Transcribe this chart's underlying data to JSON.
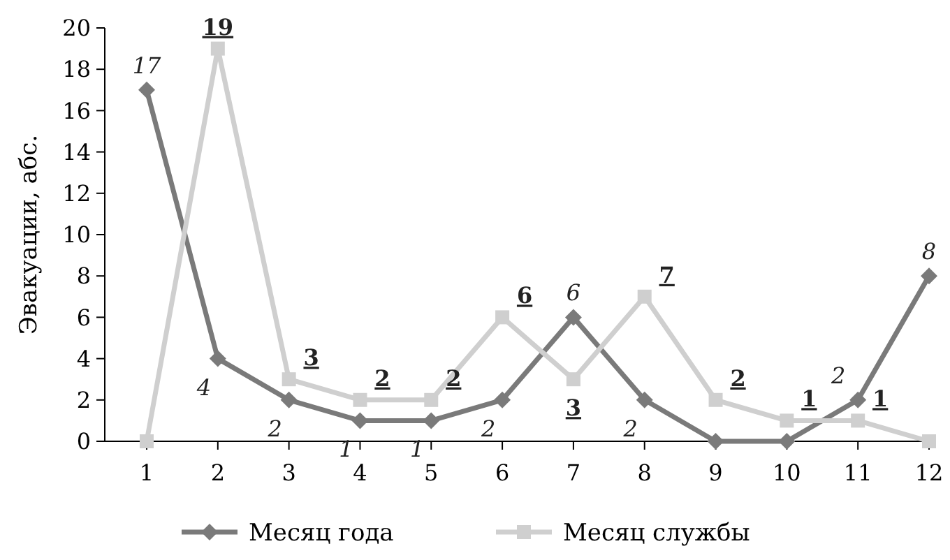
{
  "chart_data": {
    "type": "line",
    "ylabel": "Эвакуации, абс.",
    "categories": [
      "1",
      "2",
      "3",
      "4",
      "5",
      "6",
      "7",
      "8",
      "9",
      "10",
      "11",
      "12"
    ],
    "series": [
      {
        "name": "Месяц года",
        "color": "#7a7a7a",
        "marker": "diamond",
        "values": [
          17,
          4,
          2,
          1,
          1,
          2,
          6,
          2,
          0,
          0,
          2,
          8
        ],
        "value_labels": [
          "17",
          "4",
          "2",
          "1",
          "1",
          "2",
          "6",
          "2",
          null,
          null,
          "2",
          "8"
        ]
      },
      {
        "name": "Месяц службы",
        "color": "#cfcfcf",
        "marker": "square",
        "values": [
          0,
          19,
          3,
          2,
          2,
          6,
          3,
          7,
          2,
          1,
          1,
          0
        ],
        "value_labels": [
          null,
          "19",
          "3",
          "2",
          "2",
          "6",
          "3",
          "7",
          "2",
          "1",
          "1",
          null
        ]
      }
    ],
    "ylim": [
      0,
      20
    ],
    "yticks": [
      0,
      2,
      4,
      6,
      8,
      10,
      12,
      14,
      16,
      18,
      20
    ],
    "grid": false,
    "legend": "bottom"
  }
}
